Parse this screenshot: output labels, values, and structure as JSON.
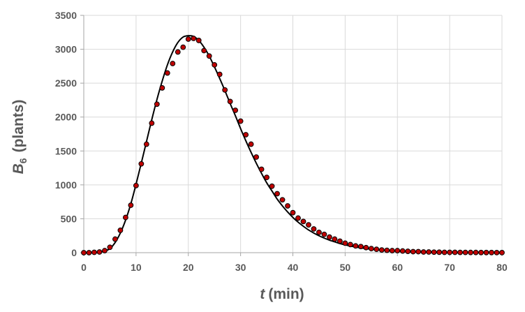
{
  "chart_data": {
    "type": "scatter",
    "xlabel_var": "t",
    "xlabel_unit": "(min)",
    "ylabel_var": "B",
    "ylabel_sub": "6",
    "ylabel_unit": "(plants)",
    "xlim": [
      0,
      80
    ],
    "ylim": [
      0,
      3500
    ],
    "xticks": [
      0,
      10,
      20,
      30,
      40,
      50,
      60,
      70,
      80
    ],
    "yticks": [
      0,
      500,
      1000,
      1500,
      2000,
      2500,
      3000,
      3500
    ],
    "grid": true,
    "series": [
      {
        "kind": "points",
        "marker_color": "#c00000",
        "x": [
          0,
          1,
          2,
          3,
          4,
          5,
          6,
          7,
          8,
          9,
          10,
          11,
          12,
          13,
          14,
          15,
          16,
          17,
          18,
          19,
          20,
          21,
          22,
          23,
          24,
          25,
          26,
          27,
          28,
          29,
          30,
          31,
          32,
          33,
          34,
          35,
          36,
          37,
          38,
          39,
          40,
          41,
          42,
          43,
          44,
          45,
          46,
          47,
          48,
          49,
          50,
          51,
          52,
          53,
          54,
          55,
          56,
          57,
          58,
          59,
          60,
          61,
          62,
          63,
          64,
          65,
          66,
          67,
          68,
          69,
          70,
          71,
          72,
          73,
          74,
          75,
          76,
          77,
          78,
          79,
          80
        ],
        "y": [
          0,
          0,
          5,
          10,
          30,
          80,
          200,
          330,
          520,
          700,
          990,
          1310,
          1600,
          1910,
          2190,
          2430,
          2650,
          2790,
          2960,
          3030,
          3150,
          3160,
          3130,
          2980,
          2900,
          2770,
          2630,
          2400,
          2230,
          2100,
          1940,
          1740,
          1600,
          1410,
          1230,
          1110,
          980,
          870,
          780,
          690,
          590,
          510,
          460,
          410,
          350,
          300,
          270,
          230,
          200,
          170,
          140,
          120,
          100,
          90,
          75,
          60,
          50,
          40,
          35,
          30,
          30,
          25,
          20,
          15,
          15,
          10,
          10,
          8,
          7,
          5,
          5,
          5,
          4,
          4,
          3,
          3,
          2,
          2,
          2,
          1,
          1
        ]
      },
      {
        "kind": "curve",
        "line_color": "#000000",
        "x": [
          0,
          1,
          2,
          3,
          4,
          5,
          6,
          7,
          8,
          9,
          10,
          11,
          12,
          13,
          14,
          15,
          16,
          17,
          18,
          19,
          20,
          21,
          22,
          23,
          24,
          25,
          26,
          27,
          28,
          29,
          30,
          31,
          32,
          33,
          34,
          35,
          36,
          37,
          38,
          39,
          40,
          41,
          42,
          43,
          44,
          45,
          46,
          47,
          48,
          49,
          50,
          51,
          52,
          53,
          54,
          55,
          56,
          57,
          58,
          59,
          60,
          61,
          62,
          63,
          64,
          65,
          66,
          67,
          68,
          69,
          70,
          71,
          72,
          73,
          74,
          75,
          76,
          77,
          78,
          79,
          80
        ],
        "y": [
          0,
          0,
          2,
          8,
          25,
          60,
          150,
          290,
          480,
          720,
          1010,
          1320,
          1640,
          1960,
          2260,
          2530,
          2770,
          2960,
          3100,
          3180,
          3200,
          3190,
          3130,
          3030,
          2900,
          2740,
          2570,
          2390,
          2200,
          2020,
          1830,
          1650,
          1480,
          1320,
          1170,
          1030,
          910,
          790,
          690,
          600,
          520,
          450,
          390,
          335,
          290,
          250,
          215,
          185,
          160,
          135,
          115,
          98,
          84,
          71,
          60,
          51,
          43,
          37,
          31,
          26,
          22,
          19,
          16,
          13,
          11,
          9,
          8,
          7,
          6,
          5,
          4,
          3,
          3,
          2,
          2,
          2,
          1,
          1,
          1,
          1,
          1
        ]
      }
    ]
  }
}
